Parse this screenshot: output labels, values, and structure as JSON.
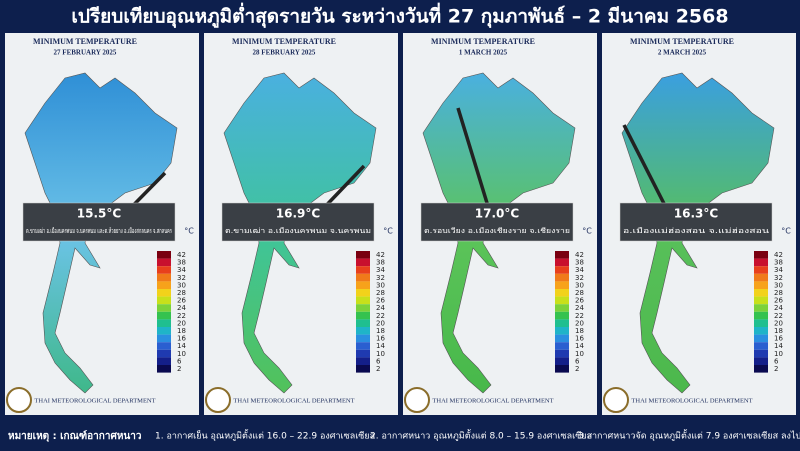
{
  "header": {
    "title": "เปรียบเทียบอุณหภูมิต่ำสุดรายวัน ระหว่างวันที่ 27 กุมภาพันธ์ – 2 มีนาคม 2568"
  },
  "panels": [
    {
      "heading": "MINIMUM TEMPERATURE",
      "date": "27 FEBRUARY 2025",
      "temperature": "15.5°C",
      "location": "ต.ขามเฒ่า อ.เมืองนครพนม จ.นครพนม และต.ห้วยยาง อ.เมืองสกลนคร จ.สกลนคร",
      "unit": "°C",
      "agency": "THAI METEOROLOGICAL DEPARTMENT"
    },
    {
      "heading": "MINIMUM TEMPERATURE",
      "date": "28 FEBRUARY 2025",
      "temperature": "16.9°C",
      "location": "ต.ขามเฒ่า อ.เมืองนครพนม จ.นครพนม",
      "unit": "°C",
      "agency": "THAI METEOROLOGICAL DEPARTMENT"
    },
    {
      "heading": "MINIMUM TEMPERATURE",
      "date": "1 MARCH 2025",
      "temperature": "17.0°C",
      "location": "ต.รอบเวียง อ.เมืองเชียงราย จ.เชียงราย",
      "unit": "°C",
      "agency": "THAI METEOROLOGICAL DEPARTMENT"
    },
    {
      "heading": "MINIMUM TEMPERATURE",
      "date": "2 MARCH 2025",
      "temperature": "16.3°C",
      "location": "อ.เมืองแม่ฮ่องสอน จ.แม่ฮ่องสอน",
      "unit": "°C",
      "agency": "THAI METEOROLOGICAL DEPARTMENT"
    }
  ],
  "legend": {
    "labels": [
      "42",
      "38",
      "34",
      "32",
      "30",
      "28",
      "26",
      "24",
      "22",
      "20",
      "18",
      "16",
      "14",
      "10",
      "6",
      "2"
    ]
  },
  "footer": {
    "note": "หมายเหตุ : เกณฑ์อากาศหนาว",
    "items": [
      "1. อากาศเย็น อุณหภูมิตั้งแต่ 16.0 – 22.9 องศาเซลเซียส",
      "2. อากาศหนาว อุณหภูมิตั้งแต่ 8.0 – 15.9 องศาเซลเซียส",
      "3.อากาศหนาวจัด อุณหภูมิตั้งแต่ 7.9 องศาเซลเซียส ลงไป"
    ]
  }
}
